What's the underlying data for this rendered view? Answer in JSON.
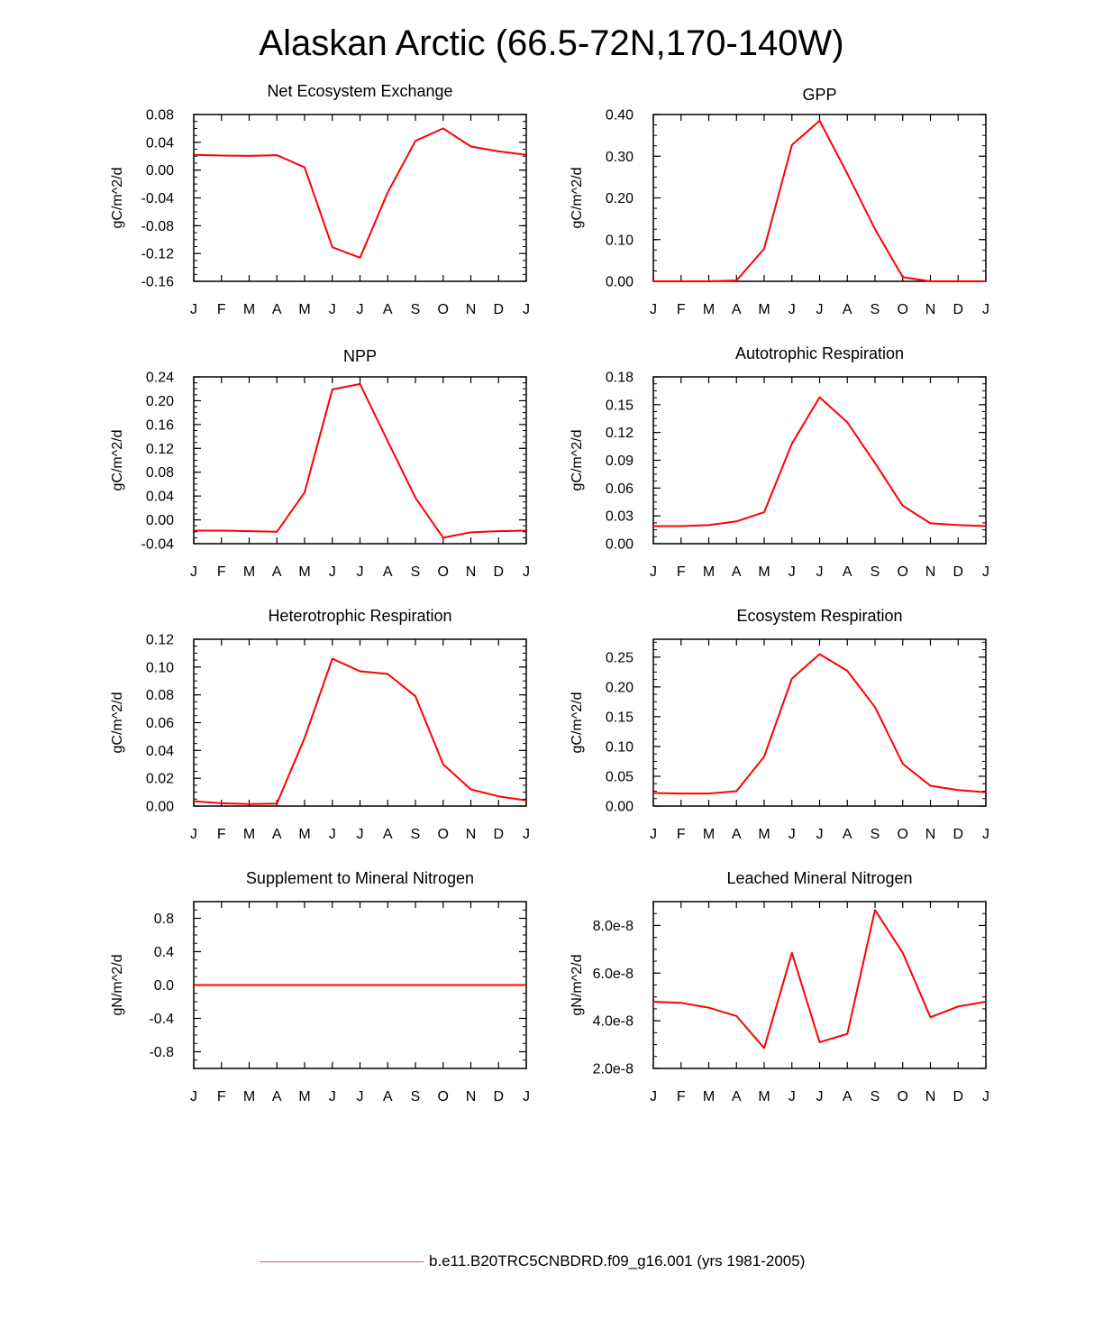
{
  "title": "Alaskan Arctic (66.5-72N,170-140W)",
  "legend": {
    "label": "b.e11.B20TRC5CNBDRD.f09_g16.001 (yrs 1981-2005)",
    "color": "#d85a64"
  },
  "series_color": "#ff0000",
  "months": [
    "J",
    "F",
    "M",
    "A",
    "M",
    "J",
    "J",
    "A",
    "S",
    "O",
    "N",
    "D",
    "J"
  ],
  "chart_data": [
    {
      "type": "line",
      "title": "Net Ecosystem Exchange",
      "ylabel": "gC/m^2/d",
      "ylim": [
        -0.16,
        0.08
      ],
      "yticks": [
        -0.16,
        -0.12,
        -0.08,
        -0.04,
        0.0,
        0.04,
        0.08
      ],
      "ytick_labels": [
        "-0.16",
        "-0.12",
        "-0.08",
        "-0.04",
        "0.00",
        "0.04",
        "0.08"
      ],
      "x": [
        "J",
        "F",
        "M",
        "A",
        "M",
        "J",
        "J",
        "A",
        "S",
        "O",
        "N",
        "D",
        "J"
      ],
      "values": [
        0.022,
        0.021,
        0.0205,
        0.0215,
        0.004,
        -0.111,
        -0.126,
        -0.032,
        0.042,
        0.06,
        0.034,
        0.027,
        0.022
      ]
    },
    {
      "type": "line",
      "title": "GPP",
      "ylabel": "gC/m^2/d",
      "ylim": [
        0.0,
        0.4
      ],
      "yticks": [
        0.0,
        0.1,
        0.2,
        0.3,
        0.4
      ],
      "ytick_labels": [
        "0.00",
        "0.10",
        "0.20",
        "0.30",
        "0.40"
      ],
      "x": [
        "J",
        "F",
        "M",
        "A",
        "M",
        "J",
        "J",
        "A",
        "S",
        "O",
        "N",
        "D",
        "J"
      ],
      "values": [
        0.0,
        0.0,
        0.0,
        0.002,
        0.078,
        0.327,
        0.385,
        0.258,
        0.125,
        0.01,
        0.0,
        0.0,
        0.0
      ]
    },
    {
      "type": "line",
      "title": "NPP",
      "ylabel": "gC/m^2/d",
      "ylim": [
        -0.04,
        0.24
      ],
      "yticks": [
        -0.04,
        0.0,
        0.04,
        0.08,
        0.12,
        0.16,
        0.2,
        0.24
      ],
      "ytick_labels": [
        "-0.04",
        "0.00",
        "0.04",
        "0.08",
        "0.12",
        "0.16",
        "0.20",
        "0.24"
      ],
      "x": [
        "J",
        "F",
        "M",
        "A",
        "M",
        "J",
        "J",
        "A",
        "S",
        "O",
        "N",
        "D",
        "J"
      ],
      "values": [
        -0.018,
        -0.018,
        -0.019,
        -0.02,
        0.046,
        0.219,
        0.228,
        0.132,
        0.037,
        -0.03,
        -0.021,
        -0.019,
        -0.018
      ]
    },
    {
      "type": "line",
      "title": "Autotrophic Respiration",
      "ylabel": "gC/m^2/d",
      "ylim": [
        0.0,
        0.18
      ],
      "yticks": [
        0.0,
        0.03,
        0.06,
        0.09,
        0.12,
        0.15,
        0.18
      ],
      "ytick_labels": [
        "0.00",
        "0.03",
        "0.06",
        "0.09",
        "0.12",
        "0.15",
        "0.18"
      ],
      "x": [
        "J",
        "F",
        "M",
        "A",
        "M",
        "J",
        "J",
        "A",
        "S",
        "O",
        "N",
        "D",
        "J"
      ],
      "values": [
        0.019,
        0.019,
        0.02,
        0.024,
        0.034,
        0.108,
        0.158,
        0.131,
        0.087,
        0.041,
        0.022,
        0.02,
        0.019
      ]
    },
    {
      "type": "line",
      "title": "Heterotrophic Respiration",
      "ylabel": "gC/m^2/d",
      "ylim": [
        0.0,
        0.12
      ],
      "yticks": [
        0.0,
        0.02,
        0.04,
        0.06,
        0.08,
        0.1,
        0.12
      ],
      "ytick_labels": [
        "0.00",
        "0.02",
        "0.04",
        "0.06",
        "0.08",
        "0.10",
        "0.12"
      ],
      "x": [
        "J",
        "F",
        "M",
        "A",
        "M",
        "J",
        "J",
        "A",
        "S",
        "O",
        "N",
        "D",
        "J"
      ],
      "values": [
        0.0035,
        0.002,
        0.0015,
        0.0018,
        0.049,
        0.106,
        0.097,
        0.095,
        0.079,
        0.03,
        0.012,
        0.007,
        0.004
      ]
    },
    {
      "type": "line",
      "title": "Ecosystem Respiration",
      "ylabel": "gC/m^2/d",
      "ylim": [
        0.0,
        0.28
      ],
      "yticks": [
        0.0,
        0.05,
        0.1,
        0.15,
        0.2,
        0.25
      ],
      "ytick_labels": [
        "0.00",
        "0.05",
        "0.10",
        "0.15",
        "0.20",
        "0.25"
      ],
      "x": [
        "J",
        "F",
        "M",
        "A",
        "M",
        "J",
        "J",
        "A",
        "S",
        "O",
        "N",
        "D",
        "J"
      ],
      "values": [
        0.022,
        0.021,
        0.021,
        0.025,
        0.083,
        0.214,
        0.255,
        0.227,
        0.166,
        0.071,
        0.034,
        0.027,
        0.023
      ]
    },
    {
      "type": "line",
      "title": "Supplement to Mineral Nitrogen",
      "ylabel": "gN/m^2/d",
      "ylim": [
        -1.0,
        1.0
      ],
      "yticks": [
        -0.8,
        -0.4,
        0.0,
        0.4,
        0.8
      ],
      "ytick_labels": [
        "-0.8",
        "-0.4",
        "0.0",
        "0.4",
        "0.8"
      ],
      "x": [
        "J",
        "F",
        "M",
        "A",
        "M",
        "J",
        "J",
        "A",
        "S",
        "O",
        "N",
        "D",
        "J"
      ],
      "values": [
        0,
        0,
        0,
        0,
        0,
        0,
        0,
        0,
        0,
        0,
        0,
        0,
        0
      ]
    },
    {
      "type": "line",
      "title": "Leached Mineral Nitrogen",
      "ylabel": "gN/m^2/d",
      "ylim": [
        2e-08,
        9e-08
      ],
      "yticks": [
        2e-08,
        4e-08,
        6e-08,
        8e-08
      ],
      "ytick_labels": [
        "2.0e-8",
        "4.0e-8",
        "6.0e-8",
        "8.0e-8"
      ],
      "x": [
        "J",
        "F",
        "M",
        "A",
        "M",
        "J",
        "J",
        "A",
        "S",
        "O",
        "N",
        "D",
        "J"
      ],
      "values": [
        4.8e-08,
        4.75e-08,
        4.55e-08,
        4.2e-08,
        2.85e-08,
        6.85e-08,
        3.1e-08,
        3.45e-08,
        8.65e-08,
        6.85e-08,
        4.15e-08,
        4.6e-08,
        4.8e-08
      ]
    }
  ]
}
